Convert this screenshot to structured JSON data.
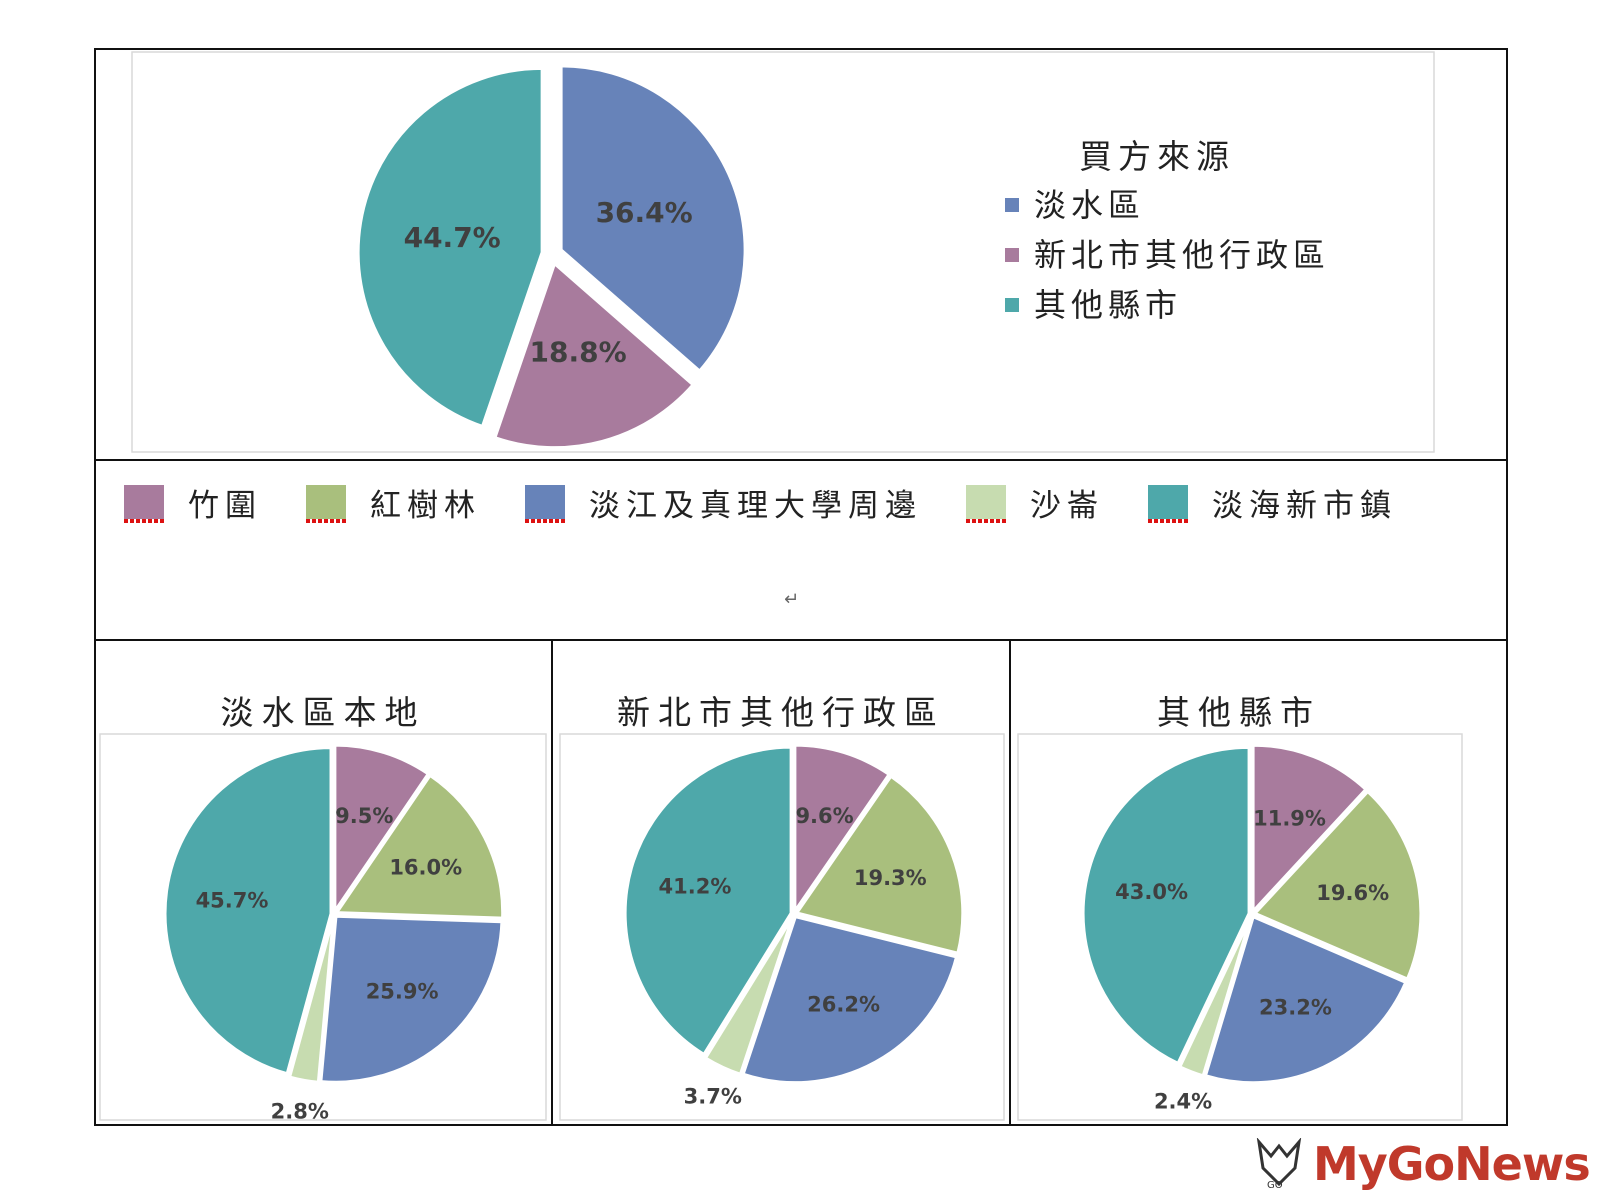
{
  "colors": {
    "tamsui": "#6783b9",
    "newtaipei_other": "#a87b9d",
    "other_counties": "#4ea8aa",
    "zhuwei": "#a87b9d",
    "mangrove": "#a9bf7d",
    "tamkang_aletheia": "#6783b9",
    "shalun": "#c7dcb0",
    "tamhai": "#4ea8aa",
    "label_text": "#404040"
  },
  "category_legend": [
    {
      "label": "竹圍",
      "color_key": "zhuwei"
    },
    {
      "label": "紅樹林",
      "color_key": "mangrove"
    },
    {
      "label": "淡江及真理大學周邊",
      "color_key": "tamkang_aletheia"
    },
    {
      "label": "沙崙",
      "color_key": "shalun"
    },
    {
      "label": "淡海新市鎮",
      "color_key": "tamhai"
    }
  ],
  "chart_data": [
    {
      "type": "pie",
      "title": "",
      "legend_title": "買方來源",
      "legend_position": "right",
      "categories": [
        "淡水區",
        "新北市其他行政區",
        "其他縣市"
      ],
      "values": [
        36.4,
        18.8,
        44.7
      ],
      "labels": [
        "36.4%",
        "18.8%",
        "44.7%"
      ],
      "colors": [
        "#6783b9",
        "#a87b9d",
        "#4ea8aa"
      ]
    },
    {
      "type": "pie",
      "title": "淡水區本地",
      "categories": [
        "竹圍",
        "紅樹林",
        "淡江及真理大學周邊",
        "沙崙",
        "淡海新市鎮"
      ],
      "values": [
        9.5,
        16.0,
        25.9,
        2.8,
        45.7
      ],
      "labels": [
        "9.5%",
        "16.0%",
        "25.9%",
        "2.8%",
        "45.7%"
      ],
      "colors": [
        "#a87b9d",
        "#a9bf7d",
        "#6783b9",
        "#c7dcb0",
        "#4ea8aa"
      ]
    },
    {
      "type": "pie",
      "title": "新北市其他行政區",
      "categories": [
        "竹圍",
        "紅樹林",
        "淡江及真理大學周邊",
        "沙崙",
        "淡海新市鎮"
      ],
      "values": [
        9.6,
        19.3,
        26.2,
        3.7,
        41.2
      ],
      "labels": [
        "9.6%",
        "19.3%",
        "26.2%",
        "3.7%",
        "41.2%"
      ],
      "colors": [
        "#a87b9d",
        "#a9bf7d",
        "#6783b9",
        "#c7dcb0",
        "#4ea8aa"
      ]
    },
    {
      "type": "pie",
      "title": "其他縣市",
      "categories": [
        "竹圍",
        "紅樹林",
        "淡江及真理大學周邊",
        "沙崙",
        "淡海新市鎮"
      ],
      "values": [
        11.9,
        19.6,
        23.2,
        2.4,
        43.0
      ],
      "labels": [
        "11.9%",
        "19.6%",
        "23.2%",
        "2.4%",
        "43.0%"
      ],
      "colors": [
        "#a87b9d",
        "#a9bf7d",
        "#6783b9",
        "#c7dcb0",
        "#4ea8aa"
      ]
    }
  ],
  "watermark": {
    "text": "MyGoNews",
    "sub": "GO"
  }
}
